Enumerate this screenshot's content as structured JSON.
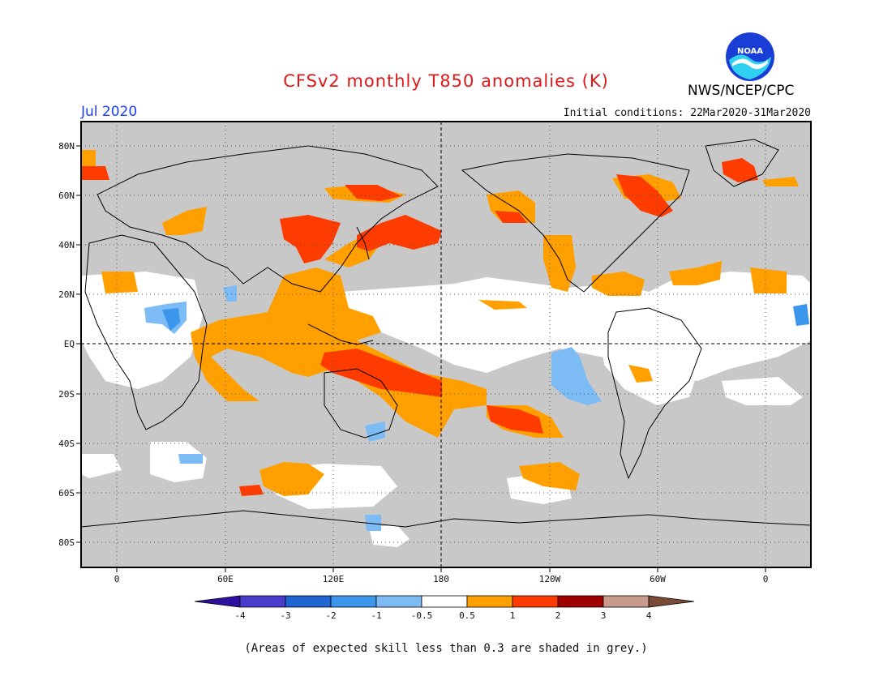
{
  "header": {
    "title": "CFSv2 monthly T850 anomalies (K)",
    "month": "Jul 2020",
    "initial_conditions": "Initial conditions: 22Mar2020-31Mar2020",
    "agency": "NWS/NCEP/CPC",
    "logo_text": "NOAA"
  },
  "map": {
    "lat_labels": [
      "80N",
      "60N",
      "40N",
      "20N",
      "EQ",
      "20S",
      "40S",
      "60S",
      "80S"
    ],
    "lon_labels": [
      "0",
      "60E",
      "120E",
      "180",
      "120W",
      "60W",
      "0"
    ]
  },
  "legend": {
    "labels": [
      "-4",
      "-3",
      "-2",
      "-1",
      "-0.5",
      "0.5",
      "1",
      "2",
      "3",
      "4"
    ],
    "colors": [
      "#2f0fa0",
      "#4a3ccc",
      "#1e64d2",
      "#3c96ec",
      "#7dbbf5",
      "#ffffff",
      "#ffa000",
      "#ff3c00",
      "#a00000",
      "#c89b8c",
      "#7a4a36"
    ]
  },
  "colors": {
    "no_skill_grey": "#c8c8c8",
    "anomaly_0_5_to_1": "#ffa000",
    "anomaly_1_to_2": "#ff3c00",
    "anomaly_neg_0_5_to_1": "#7dbbf5",
    "anomaly_neg_1_to_2": "#3c96ec",
    "title": "#e01818",
    "month": "#1a3cff"
  },
  "footnote": "(Areas of expected skill less than 0.3 are shaded in grey.)"
}
